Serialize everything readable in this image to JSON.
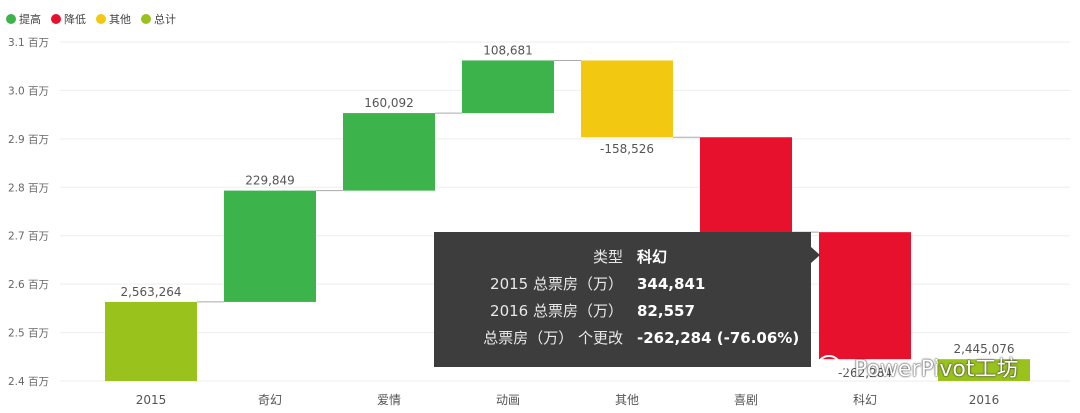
{
  "legend": [
    {
      "label": "提高",
      "color": "#3cb44b"
    },
    {
      "label": "降低",
      "color": "#e8112d"
    },
    {
      "label": "其他",
      "color": "#f2c811"
    },
    {
      "label": "总计",
      "color": "#99c31c"
    }
  ],
  "chart_data": {
    "type": "bar",
    "subtype": "waterfall",
    "categories": [
      "2015",
      "奇幻",
      "爱情",
      "动画",
      "其他",
      "喜剧",
      "科幻",
      "2016"
    ],
    "series": [
      {
        "start": 2400000,
        "end": 2563264,
        "kind": "total",
        "label": "2,563,264"
      },
      {
        "start": 2563264,
        "end": 2793113,
        "kind": "increase",
        "label": "229,849"
      },
      {
        "start": 2793113,
        "end": 2953205,
        "kind": "increase",
        "label": "160,092"
      },
      {
        "start": 2953205,
        "end": 3061886,
        "kind": "increase",
        "label": "108,681"
      },
      {
        "start": 3061886,
        "end": 2903360,
        "kind": "other",
        "label": "-158,526"
      },
      {
        "start": 2903360,
        "end": 2707360,
        "kind": "decrease",
        "label": ""
      },
      {
        "start": 2707360,
        "end": 2445076,
        "kind": "decrease",
        "label": "-262,284"
      },
      {
        "start": 2400000,
        "end": 2445076,
        "kind": "total",
        "label": "2,445,076"
      }
    ],
    "yticks": [
      {
        "value": 2400000,
        "label": "2.4 百万"
      },
      {
        "value": 2500000,
        "label": "2.5 百万"
      },
      {
        "value": 2600000,
        "label": "2.6 百万"
      },
      {
        "value": 2700000,
        "label": "2.7 百万"
      },
      {
        "value": 2800000,
        "label": "2.8 百万"
      },
      {
        "value": 2900000,
        "label": "2.9 百万"
      },
      {
        "value": 3000000,
        "label": "3.0 百万"
      },
      {
        "value": 3100000,
        "label": "3.1 百万"
      }
    ],
    "ylim": [
      2400000,
      3100000
    ],
    "grid": true,
    "legend_position": "top-left"
  },
  "tooltip": {
    "rows": [
      {
        "key": "类型",
        "value": "科幻"
      },
      {
        "key": "2015 总票房（万）",
        "value": "344,841"
      },
      {
        "key": "2016 总票房（万）",
        "value": "82,557"
      },
      {
        "key": "总票房（万） 个更改",
        "value": "-262,284 (-76.06%)"
      }
    ]
  },
  "watermark": {
    "text": "PowerPivot工坊",
    "icon": "wechat-icon"
  }
}
